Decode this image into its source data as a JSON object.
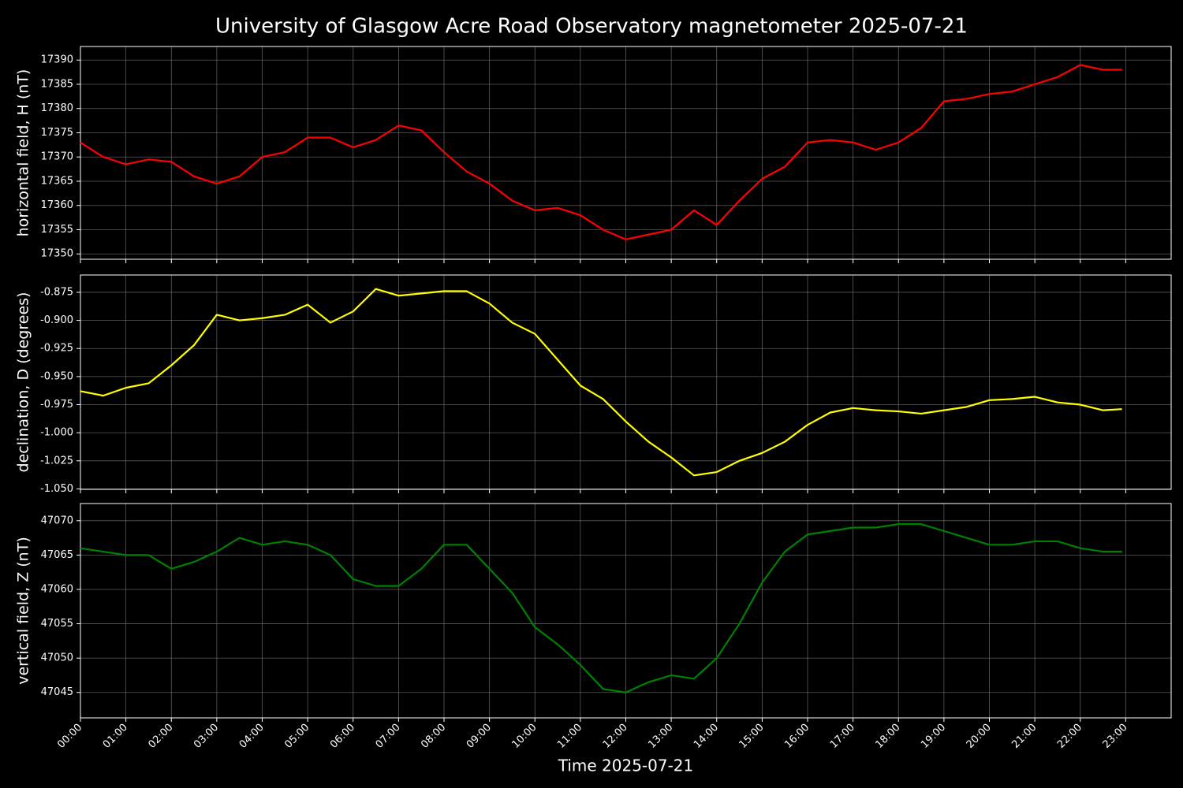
{
  "title": "University of Glasgow Acre Road Observatory magnetometer 2025-07-21",
  "chart_data": [
    {
      "type": "line",
      "ylabel": "horizontal field, H (nT)",
      "color": "#ff0000",
      "grid": true,
      "xlim": [
        "00:00",
        "24:00"
      ],
      "ylim": [
        17348.9,
        17392.8
      ],
      "yticks": [
        17350,
        17355,
        17360,
        17365,
        17370,
        17375,
        17380,
        17385,
        17390
      ],
      "x": [
        "00:00",
        "00:30",
        "01:00",
        "01:30",
        "02:00",
        "02:30",
        "03:00",
        "03:30",
        "04:00",
        "04:30",
        "05:00",
        "05:30",
        "06:00",
        "06:30",
        "07:00",
        "07:30",
        "08:00",
        "08:30",
        "09:00",
        "09:30",
        "10:00",
        "10:30",
        "11:00",
        "11:30",
        "12:00",
        "12:30",
        "13:00",
        "13:30",
        "14:00",
        "14:30",
        "15:00",
        "15:30",
        "16:00",
        "16:30",
        "17:00",
        "17:30",
        "18:00",
        "18:30",
        "19:00",
        "19:30",
        "20:00",
        "20:30",
        "21:00",
        "21:30",
        "22:00",
        "22:30",
        "22:55"
      ],
      "values": [
        17373,
        17370,
        17368.5,
        17369.5,
        17369,
        17366,
        17364.5,
        17366,
        17370,
        17371,
        17374,
        17374,
        17372,
        17373.5,
        17376.5,
        17375.5,
        17371,
        17367,
        17364.5,
        17361,
        17359,
        17359.5,
        17358,
        17355,
        17353,
        17354,
        17355,
        17359,
        17356,
        17361,
        17365.5,
        17368,
        17373,
        17373.5,
        17373,
        17371.5,
        17373,
        17376,
        17381.5,
        17382,
        17383,
        17383.5,
        17385,
        17386.5,
        17389,
        17388,
        17388
      ]
    },
    {
      "type": "line",
      "ylabel": "declination, D (degrees)",
      "color": "#ffff00",
      "grid": true,
      "xlim": [
        "00:00",
        "24:00"
      ],
      "ylim": [
        -1.0504,
        -0.8596
      ],
      "yticks": [
        -0.875,
        {
          "value": -0.9,
          "label": "-0.900"
        },
        -0.925,
        {
          "value": -0.95,
          "label": "-0.950"
        },
        -0.975,
        {
          "value": -1,
          "label": "-1.000"
        },
        -1.025,
        {
          "value": -1.05,
          "label": "-1.050"
        }
      ],
      "x": [
        "00:00",
        "00:30",
        "01:00",
        "01:30",
        "02:00",
        "02:30",
        "03:00",
        "03:30",
        "04:00",
        "04:30",
        "05:00",
        "05:30",
        "06:00",
        "06:30",
        "07:00",
        "07:30",
        "08:00",
        "08:30",
        "09:00",
        "09:30",
        "10:00",
        "10:30",
        "11:00",
        "11:30",
        "12:00",
        "12:30",
        "13:00",
        "13:30",
        "14:00",
        "14:30",
        "15:00",
        "15:30",
        "16:00",
        "16:30",
        "17:00",
        "17:30",
        "18:00",
        "18:30",
        "19:00",
        "19:30",
        "20:00",
        "20:30",
        "21:00",
        "21:30",
        "22:00",
        "22:30",
        "22:55"
      ],
      "values": [
        -0.963,
        -0.967,
        -0.96,
        -0.956,
        -0.94,
        -0.922,
        -0.895,
        -0.9,
        -0.898,
        -0.895,
        -0.886,
        -0.902,
        -0.892,
        -0.872,
        -0.878,
        -0.876,
        -0.874,
        -0.874,
        -0.885,
        -0.902,
        -0.912,
        -0.935,
        -0.958,
        -0.97,
        -0.99,
        -1.008,
        -1.022,
        -1.038,
        -1.035,
        -1.025,
        -1.018,
        -1.008,
        -0.993,
        -0.982,
        -0.978,
        -0.98,
        -0.981,
        -0.983,
        -0.98,
        -0.977,
        -0.971,
        -0.97,
        -0.968,
        -0.973,
        -0.975,
        -0.98,
        -0.979
      ]
    },
    {
      "type": "line",
      "ylabel": "vertical field, Z (nT)",
      "xlabel": "Time 2025-07-21",
      "color": "#008000",
      "grid": true,
      "xlim": [
        "00:00",
        "24:00"
      ],
      "ylim": [
        47041.3,
        47072.5
      ],
      "yticks": [
        47045,
        47050,
        47055,
        47060,
        47065,
        47070
      ],
      "xticks": [
        "00:00",
        "01:00",
        "02:00",
        "03:00",
        "04:00",
        "05:00",
        "06:00",
        "07:00",
        "08:00",
        "09:00",
        "10:00",
        "11:00",
        "12:00",
        "13:00",
        "14:00",
        "15:00",
        "16:00",
        "17:00",
        "18:00",
        "19:00",
        "20:00",
        "21:00",
        "22:00",
        "23:00"
      ],
      "x": [
        "00:00",
        "00:30",
        "01:00",
        "01:30",
        "02:00",
        "02:30",
        "03:00",
        "03:30",
        "04:00",
        "04:30",
        "05:00",
        "05:30",
        "06:00",
        "06:30",
        "07:00",
        "07:30",
        "08:00",
        "08:30",
        "09:00",
        "09:30",
        "10:00",
        "10:30",
        "11:00",
        "11:30",
        "12:00",
        "12:30",
        "13:00",
        "13:30",
        "14:00",
        "14:30",
        "15:00",
        "15:30",
        "16:00",
        "16:30",
        "17:00",
        "17:30",
        "18:00",
        "18:30",
        "19:00",
        "19:30",
        "20:00",
        "20:30",
        "21:00",
        "21:30",
        "22:00",
        "22:30",
        "22:55"
      ],
      "values": [
        47066,
        47065.5,
        47065,
        47065,
        47063,
        47064,
        47065.5,
        47067.5,
        47066.5,
        47067,
        47066.5,
        47065,
        47061.5,
        47060.5,
        47060.5,
        47063,
        47066.5,
        47066.5,
        47063,
        47059.5,
        47054.5,
        47052,
        47049,
        47045.5,
        47045,
        47046.5,
        47047.5,
        47047,
        47050,
        47055,
        47061,
        47065.5,
        47068,
        47068.5,
        47069,
        47069,
        47069.5,
        47069.5,
        47068.5,
        47067.5,
        47066.5,
        47066.5,
        47067,
        47067,
        47066,
        47065.5,
        47065.5
      ]
    }
  ]
}
